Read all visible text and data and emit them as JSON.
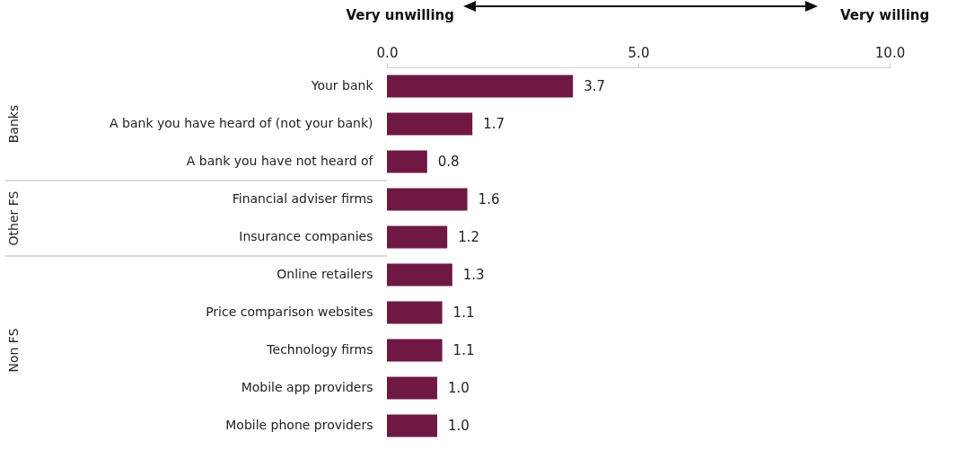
{
  "chart_data": {
    "type": "bar",
    "orientation": "horizontal",
    "categories": [
      "Your bank",
      "A bank you have heard of (not your bank)",
      "A bank you have not heard of",
      "Financial adviser firms",
      "Insurance companies",
      "Online retailers",
      "Price comparison websites",
      "Technology firms",
      "Mobile app providers",
      "Mobile phone providers"
    ],
    "values": [
      3.7,
      1.7,
      0.8,
      1.6,
      1.2,
      1.3,
      1.1,
      1.1,
      1.0,
      1.0
    ],
    "value_labels": [
      "3.7",
      "1.7",
      "0.8",
      "1.6",
      "1.2",
      "1.3",
      "1.1",
      "1.1",
      "1.0",
      "1.0"
    ],
    "color": "#6e1843",
    "xlim": [
      0,
      10
    ],
    "xticks": [
      {
        "value": 0,
        "label": "0.0"
      },
      {
        "value": 5,
        "label": "5.0"
      },
      {
        "value": 10,
        "label": "10.0"
      }
    ],
    "annotations": [
      "Very unwilling",
      "Very willing",
      "Banks",
      "Other FS",
      "Non FS"
    ],
    "grid": false
  }
}
